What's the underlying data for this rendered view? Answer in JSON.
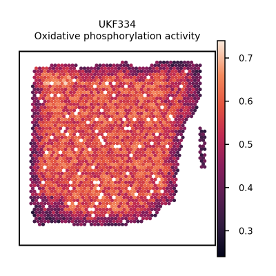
{
  "chart_data": {
    "type": "scatter",
    "subtype": "spatial-hexagon-spot-map",
    "title_lines": [
      "UKF334",
      "Oxidative phosphorylation activity"
    ],
    "xlabel": "",
    "ylabel": "",
    "grid": false,
    "axes_ticks": false,
    "colorbar": {
      "colormap": "rocket",
      "vmin": 0.24,
      "vmax": 0.74,
      "ticks": [
        0.3,
        0.4,
        0.5,
        0.6,
        0.7
      ],
      "tick_labels": [
        "0.3",
        "0.4",
        "0.5",
        "0.6",
        "0.7"
      ],
      "position": "right"
    },
    "value_summary": {
      "typical_core": 0.58,
      "upper_left_corner": 0.66,
      "edges": 0.4,
      "lower_left_corner": 0.3
    }
  }
}
